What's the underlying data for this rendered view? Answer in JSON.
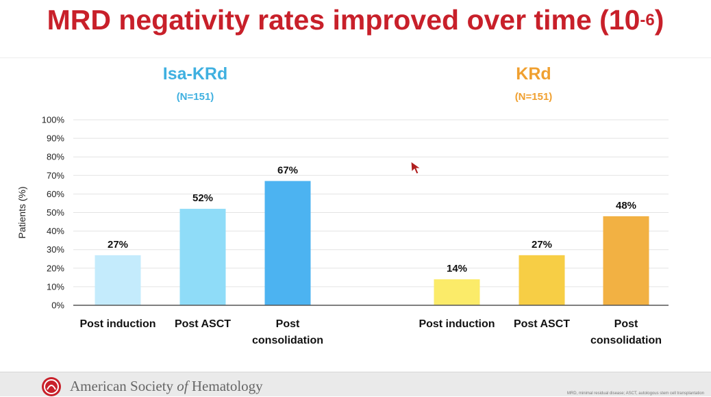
{
  "slide": {
    "title_main": "MRD negativity rates improved over time (10",
    "title_exp": "-6",
    "title_end": ")"
  },
  "groups": [
    {
      "name": "Isa-KRd",
      "n": "(N=151)",
      "color": "#3fb0e0"
    },
    {
      "name": "KRd",
      "n": "(N=151)",
      "color": "#f0a030"
    }
  ],
  "chart_data": {
    "type": "bar",
    "ylabel": "Patients (%)",
    "ylim": [
      0,
      100
    ],
    "yticks": [
      0,
      10,
      20,
      30,
      40,
      50,
      60,
      70,
      80,
      90,
      100
    ],
    "ytick_labels": [
      "0%",
      "10%",
      "20%",
      "30%",
      "40%",
      "50%",
      "60%",
      "70%",
      "80%",
      "90%",
      "100%"
    ],
    "grid": true,
    "groups": [
      {
        "name": "Isa-KRd",
        "categories": [
          [
            "Post induction"
          ],
          [
            "Post ASCT"
          ],
          [
            "Post",
            "consolidation"
          ]
        ],
        "values": [
          27,
          52,
          67
        ],
        "labels": [
          "27%",
          "52%",
          "67%"
        ],
        "colors": [
          "#c4ebfc",
          "#8fdcf8",
          "#4cb3f1"
        ]
      },
      {
        "name": "KRd",
        "categories": [
          [
            "Post induction"
          ],
          [
            "Post ASCT"
          ],
          [
            "Post",
            "consolidation"
          ]
        ],
        "values": [
          14,
          27,
          48
        ],
        "labels": [
          "14%",
          "27%",
          "48%"
        ],
        "colors": [
          "#fbeb69",
          "#f7ce45",
          "#f2b143"
        ]
      }
    ]
  },
  "footer": {
    "org_part1": "American Society ",
    "org_part2": "of",
    "org_part3": " Hematology",
    "note": "MRD, minimal residual disease; ASCT, autologous stem cell transplantation"
  },
  "icons": {
    "logo": "ash-logo-icon",
    "cursor": "pointer-arrow-icon"
  }
}
